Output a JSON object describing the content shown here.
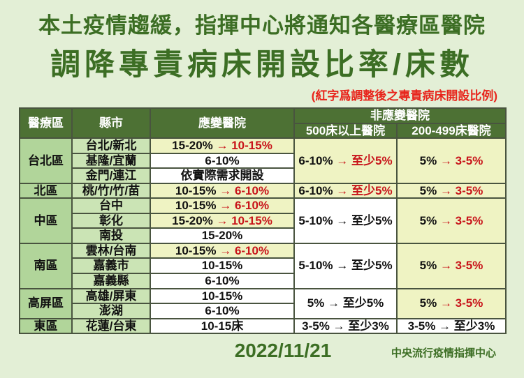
{
  "title": {
    "line1": "本土疫情趨緩，指揮中心將通知各醫療區醫院",
    "line2": "調降專責病床開設比率/床數",
    "note": "(紅字爲調整後之專責病床開設比例)"
  },
  "colors": {
    "page_bg": "#e3efd6",
    "title_green": "#3c6e24",
    "note_red": "#e8251c",
    "header_bg": "#4d7134",
    "header_text": "#ffffff",
    "region_bg": "#b1d59a",
    "county_bg": "#cbe4b5",
    "highlight_bg": "#eff3c3",
    "value_red": "#c8141a",
    "text_black": "#111111",
    "border": "#49543f"
  },
  "table": {
    "headers": {
      "region": "醫療區",
      "county": "縣市",
      "responding": "應變醫院",
      "non_responding": "非應變醫院",
      "beds_500": "500床以上醫院",
      "beds_200_499": "200-499床醫院"
    },
    "groups": [
      {
        "region": "台北區",
        "rows": [
          {
            "county": "台北/新北",
            "bg": "highlight",
            "segs": [
              {
                "t": "15-20% ",
                "red": false
              },
              {
                "t": "→ 10-15%",
                "red": true
              }
            ]
          },
          {
            "county": "基隆/宜蘭",
            "bg": "white",
            "segs": [
              {
                "t": "6-10%",
                "red": false
              }
            ]
          },
          {
            "county": "金門/連江",
            "bg": "white",
            "segs": [
              {
                "t": "依實際需求開設",
                "red": false
              }
            ]
          }
        ],
        "beds500": {
          "bg": "highlight",
          "segs": [
            {
              "t": "6-10% ",
              "red": false
            },
            {
              "t": "→ 至少5%",
              "red": true
            }
          ]
        },
        "beds200": {
          "bg": "highlight",
          "segs": [
            {
              "t": "5% ",
              "red": false
            },
            {
              "t": "→ 3-5%",
              "red": true
            }
          ]
        }
      },
      {
        "region": "北區",
        "rows": [
          {
            "county": "桃/竹/竹/苗",
            "bg": "highlight",
            "segs": [
              {
                "t": "10-15% ",
                "red": false
              },
              {
                "t": "→ 6-10%",
                "red": true
              }
            ]
          }
        ],
        "beds500": {
          "bg": "highlight",
          "segs": [
            {
              "t": "6-10% ",
              "red": false
            },
            {
              "t": "→ 至少5%",
              "red": true
            }
          ]
        },
        "beds200": {
          "bg": "highlight",
          "segs": [
            {
              "t": "5% ",
              "red": false
            },
            {
              "t": "→ 3-5%",
              "red": true
            }
          ]
        }
      },
      {
        "region": "中區",
        "rows": [
          {
            "county": "台中",
            "bg": "highlight",
            "segs": [
              {
                "t": "10-15% ",
                "red": false
              },
              {
                "t": "→ 6-10%",
                "red": true
              }
            ]
          },
          {
            "county": "彰化",
            "bg": "highlight",
            "segs": [
              {
                "t": "15-20% ",
                "red": false
              },
              {
                "t": "→ 10-15%",
                "red": true
              }
            ]
          },
          {
            "county": "南投",
            "bg": "white",
            "segs": [
              {
                "t": "15-20%",
                "red": false
              }
            ]
          }
        ],
        "beds500": {
          "bg": "white",
          "segs": [
            {
              "t": "5-10% → 至少5%",
              "red": false
            }
          ]
        },
        "beds200": {
          "bg": "highlight",
          "segs": [
            {
              "t": "5% ",
              "red": false
            },
            {
              "t": "→ 3-5%",
              "red": true
            }
          ]
        }
      },
      {
        "region": "南區",
        "rows": [
          {
            "county": "雲林/台南",
            "bg": "highlight",
            "segs": [
              {
                "t": "10-15% ",
                "red": false
              },
              {
                "t": "→ 6-10%",
                "red": true
              }
            ]
          },
          {
            "county": "嘉義市",
            "bg": "white",
            "segs": [
              {
                "t": "10-15%",
                "red": false
              }
            ]
          },
          {
            "county": "嘉義縣",
            "bg": "white",
            "segs": [
              {
                "t": "6-10%",
                "red": false
              }
            ]
          }
        ],
        "beds500": {
          "bg": "white",
          "segs": [
            {
              "t": "5-10% → 至少5%",
              "red": false
            }
          ]
        },
        "beds200": {
          "bg": "highlight",
          "segs": [
            {
              "t": "5% ",
              "red": false
            },
            {
              "t": "→ 3-5%",
              "red": true
            }
          ]
        }
      },
      {
        "region": "高屏區",
        "rows": [
          {
            "county": "高雄/屏東",
            "bg": "white",
            "segs": [
              {
                "t": "10-15%",
                "red": false
              }
            ]
          },
          {
            "county": "澎湖",
            "bg": "white",
            "segs": [
              {
                "t": "6-10%",
                "red": false
              }
            ]
          }
        ],
        "beds500": {
          "bg": "white",
          "segs": [
            {
              "t": "5% → 至少5%",
              "red": false
            }
          ]
        },
        "beds200": {
          "bg": "highlight",
          "segs": [
            {
              "t": "5% ",
              "red": false
            },
            {
              "t": "→ 3-5%",
              "red": true
            }
          ]
        }
      },
      {
        "region": "東區",
        "rows": [
          {
            "county": "花蓮/台東",
            "bg": "white",
            "segs": [
              {
                "t": "10-15床",
                "red": false
              }
            ]
          }
        ],
        "beds500": {
          "bg": "white",
          "segs": [
            {
              "t": "3-5% → 至少3%",
              "red": false
            }
          ]
        },
        "beds200": {
          "bg": "white",
          "segs": [
            {
              "t": "3-5% → 至少3%",
              "red": false
            }
          ]
        }
      }
    ]
  },
  "footer": {
    "date": "2022/11/21",
    "org": "中央流行疫情指揮中心"
  }
}
